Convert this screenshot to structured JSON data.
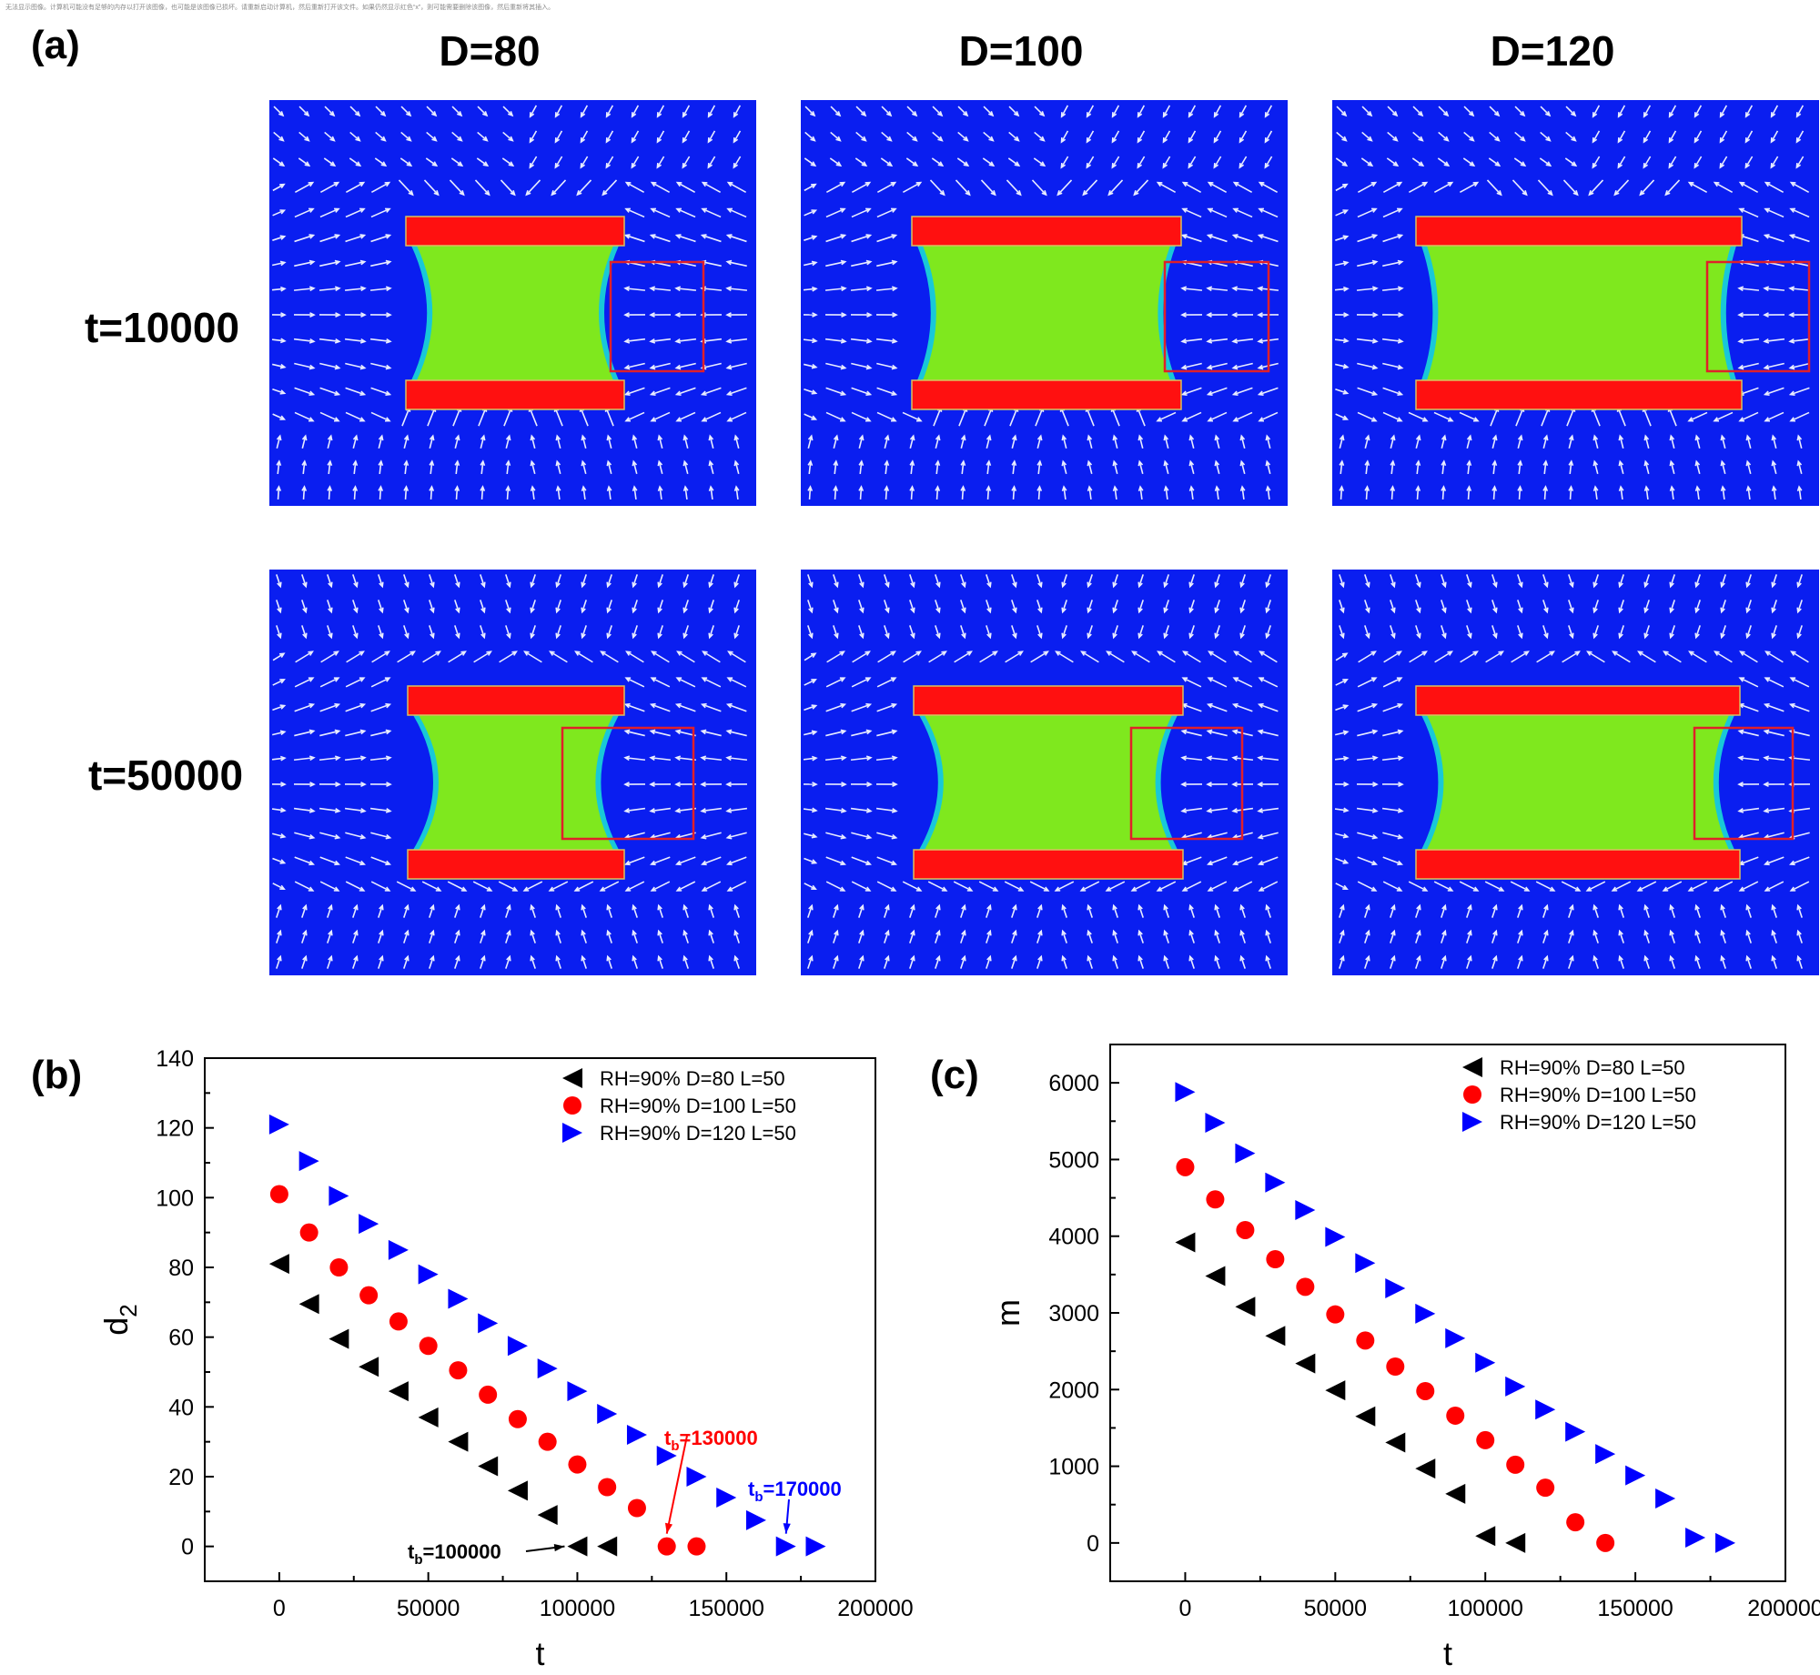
{
  "warning_text": "无法显示图像。计算机可能没有足够的内存以打开该图像，也可能是该图像已损坏。请重新启动计算机，然后重新打开该文件。如果仍然显示红色“x”，则可能需要删除该图像，然后重新将其插入。",
  "panel_a": {
    "label": "(a)",
    "columns": [
      "D=80",
      "D=100",
      "D=120"
    ],
    "rows": [
      "t=10000",
      "t=50000"
    ],
    "colors": {
      "background": "#0a1ef0",
      "plate": "#ff1010",
      "liquid": "#7fe81e",
      "interface": "#18c8d8",
      "arrow": "#e8ecff",
      "highlight_box": "#e0202a"
    }
  },
  "chart_data": [
    {
      "type": "scatter",
      "panel_label": "(b)",
      "xlabel": "t",
      "ylabel": "d",
      "ylabel_sub": "2",
      "xlim": [
        -25000,
        200000
      ],
      "ylim": [
        -10,
        140
      ],
      "xticks": [
        0,
        50000,
        100000,
        150000,
        200000
      ],
      "yticks": [
        0,
        20,
        40,
        60,
        80,
        100,
        120,
        140
      ],
      "legend_position": "top-right",
      "series": [
        {
          "name": "RH=90% D=80 L=50",
          "marker": "triangle-left",
          "color": "#000000",
          "x": [
            0,
            10000,
            20000,
            30000,
            40000,
            50000,
            60000,
            70000,
            80000,
            90000,
            100000,
            110000
          ],
          "y": [
            81,
            69.5,
            59.5,
            51.5,
            44.5,
            37,
            30,
            23,
            16,
            9,
            0,
            0
          ]
        },
        {
          "name": "RH=90% D=100 L=50",
          "marker": "circle",
          "color": "#ff0000",
          "x": [
            0,
            10000,
            20000,
            30000,
            40000,
            50000,
            60000,
            70000,
            80000,
            90000,
            100000,
            110000,
            120000,
            130000,
            140000
          ],
          "y": [
            101,
            90,
            80,
            72,
            64.5,
            57.5,
            50.5,
            43.5,
            36.5,
            30,
            23.5,
            17,
            11,
            0,
            0
          ]
        },
        {
          "name": "RH=90% D=120 L=50",
          "marker": "triangle-right",
          "color": "#0000ff",
          "x": [
            0,
            10000,
            20000,
            30000,
            40000,
            50000,
            60000,
            70000,
            80000,
            90000,
            100000,
            110000,
            120000,
            130000,
            140000,
            150000,
            160000,
            170000,
            180000
          ],
          "y": [
            121,
            110.5,
            100.5,
            92.5,
            85,
            78,
            71,
            64,
            57.5,
            51,
            44.5,
            38,
            32,
            26,
            20,
            14,
            7.5,
            0,
            0
          ]
        }
      ],
      "annotations": [
        {
          "text_main": "t",
          "text_sub": "b",
          "text_rest": "=100000",
          "color": "#000000"
        },
        {
          "text_main": "t",
          "text_sub": "b",
          "text_rest": "=130000",
          "color": "#ff0000"
        },
        {
          "text_main": "t",
          "text_sub": "b",
          "text_rest": "=170000",
          "color": "#0000ff"
        }
      ]
    },
    {
      "type": "scatter",
      "panel_label": "(c)",
      "xlabel": "t",
      "ylabel": "m",
      "xlim": [
        -25000,
        200000
      ],
      "ylim": [
        -500,
        6500
      ],
      "xticks": [
        0,
        50000,
        100000,
        150000,
        200000
      ],
      "yticks": [
        0,
        1000,
        2000,
        3000,
        4000,
        5000,
        6000
      ],
      "legend_position": "top-right",
      "series": [
        {
          "name": "RH=90% D=80 L=50",
          "marker": "triangle-left",
          "color": "#000000",
          "x": [
            0,
            10000,
            20000,
            30000,
            40000,
            50000,
            60000,
            70000,
            80000,
            90000,
            100000,
            110000
          ],
          "y": [
            3920,
            3480,
            3080,
            2700,
            2340,
            1990,
            1650,
            1310,
            970,
            640,
            90,
            0
          ]
        },
        {
          "name": "RH=90% D=100 L=50",
          "marker": "circle",
          "color": "#ff0000",
          "x": [
            0,
            10000,
            20000,
            30000,
            40000,
            50000,
            60000,
            70000,
            80000,
            90000,
            100000,
            110000,
            120000,
            130000,
            140000
          ],
          "y": [
            4900,
            4480,
            4080,
            3700,
            3340,
            2980,
            2640,
            2300,
            1980,
            1660,
            1340,
            1020,
            720,
            270,
            0
          ]
        },
        {
          "name": "RH=90% D=120 L=50",
          "marker": "triangle-right",
          "color": "#0000ff",
          "x": [
            0,
            10000,
            20000,
            30000,
            40000,
            50000,
            60000,
            70000,
            80000,
            90000,
            100000,
            110000,
            120000,
            130000,
            140000,
            150000,
            160000,
            170000,
            180000
          ],
          "y": [
            5880,
            5480,
            5080,
            4700,
            4340,
            3990,
            3650,
            3320,
            2990,
            2670,
            2350,
            2040,
            1740,
            1450,
            1160,
            880,
            580,
            70,
            0
          ]
        }
      ]
    }
  ]
}
